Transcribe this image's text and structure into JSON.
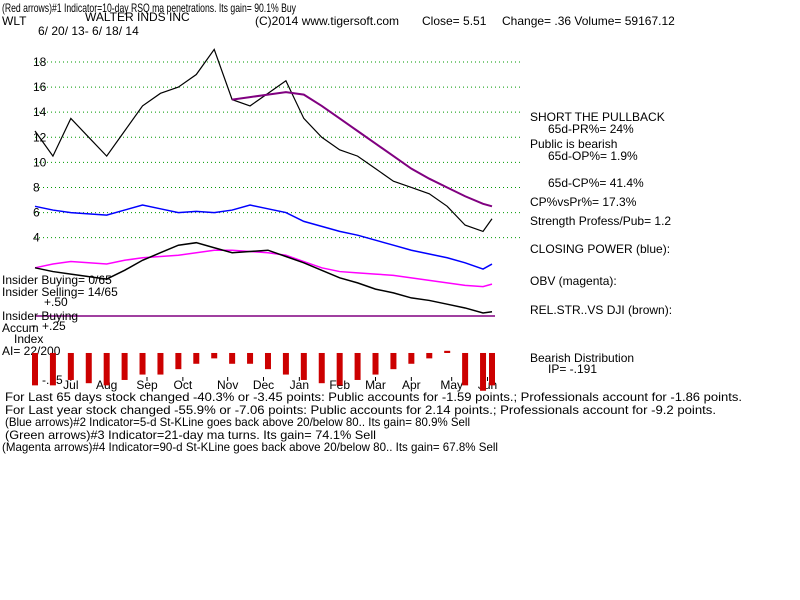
{
  "chart_data": [
    {
      "type": "line",
      "title": "WALTER INDS INC",
      "subtitle": "6/ 20/ 13- 6/ 18/ 14",
      "annotations": [
        "(Red arrows)#1 Indicator=10-day RSQ ma penetrations.  Its gain= 90.1% Buy",
        "WLT",
        "(C)2014 www.tigersoft.com",
        "Close=  5.51",
        "Change= .36 Volume= 59167.12",
        "SHORT THE PULLBACK",
        "65d-PR%= 24%",
        "Public is bearish",
        "65d-OP%= 1.9%",
        "65d-CP%= 41.4%",
        "CP%vsPr%=  17.3%",
        "Strength Profess/Pub= 1.2",
        "CLOSING POWER (blue):",
        "OBV (magenta):",
        "REL.STR..VS DJI (brown):",
        "Bearish Distribution",
        "IP= -.191",
        "Insider Buying= 0/65",
        "Insider Selling= 14/65",
        "+.50",
        "Insider Buying",
        "Accum",
        "Index",
        "AI= 22/200",
        "For Last 65 days stock changed -40.3% or -3.45 points:  Public accounts for -1.59 points.;  Professionals account for -1.86 points.",
        "For Last year stock changed -55.9% or -7.06 points:  Public accounts for  2.14 points.;  Professionals account for -9.2 points.",
        "(Blue arrows)#2 Indicator=5-d St-KLine goes back above 20/below 80.. Its gain= 80.9% Sell",
        "(Green arrows)#3 Indicator=21-day ma turns.  Its gain= 74.1% Sell",
        "(Magenta arrows)#4 Indicator=90-d St-KLine goes back above 20/below 80.. Its gain= 67.8% Sell"
      ],
      "x": [
        0,
        2,
        4,
        6,
        8,
        10,
        12,
        14,
        16,
        18,
        20,
        22,
        24,
        26,
        28,
        30,
        32,
        34,
        36,
        38,
        40,
        42,
        44,
        46,
        48,
        50,
        51
      ],
      "xlim": [
        0,
        51
      ],
      "xticks": [
        {
          "value": 4,
          "label": "Jul"
        },
        {
          "value": 8,
          "label": "Aug"
        },
        {
          "value": 12.5,
          "label": "Sep"
        },
        {
          "value": 16.5,
          "label": "Oct"
        },
        {
          "value": 21.5,
          "label": "Nov"
        },
        {
          "value": 25.5,
          "label": "Dec"
        },
        {
          "value": 29.5,
          "label": "Jan"
        },
        {
          "value": 34,
          "label": "Feb"
        },
        {
          "value": 38,
          "label": "Mar"
        },
        {
          "value": 42,
          "label": "Apr"
        },
        {
          "value": 46.5,
          "label": "May"
        },
        {
          "value": 50.5,
          "label": "Jun"
        }
      ],
      "ylim": [
        -2.4,
        20.5
      ],
      "yticks": [
        4,
        6,
        8,
        10,
        12,
        14,
        16,
        18
      ],
      "grid": true,
      "grid_color": "#009900",
      "series": [
        {
          "color": "#000000",
          "values": [
            12.5,
            10.5,
            13.5,
            12,
            10.5,
            12.5,
            14.5,
            15.5,
            16,
            17,
            19,
            15,
            14.5,
            15.5,
            16.5,
            13.5,
            12,
            11,
            10.5,
            9.5,
            8.5,
            8,
            7.5,
            6.5,
            5,
            4.5,
            5.51
          ]
        },
        {
          "color": "#800080",
          "values": [
            null,
            null,
            null,
            null,
            null,
            null,
            null,
            null,
            null,
            null,
            null,
            15,
            15.2,
            15.4,
            15.6,
            15.4,
            14.5,
            13.5,
            12.5,
            11.5,
            10.5,
            9.5,
            8.7,
            8,
            7.3,
            6.7,
            6.5
          ]
        },
        {
          "color": "#0000ff",
          "values": [
            6.5,
            6.2,
            6,
            5.9,
            5.8,
            6.2,
            6.6,
            6.3,
            6,
            6.1,
            6,
            6.2,
            6.6,
            6.3,
            6,
            5.3,
            4.9,
            4.5,
            4.2,
            3.8,
            3.4,
            3,
            2.7,
            2.4,
            2,
            1.5,
            1.9
          ]
        },
        {
          "color": "#ff00ff",
          "values": [
            1.6,
            1.9,
            2.1,
            2,
            1.9,
            2.2,
            2.4,
            2.5,
            2.6,
            2.8,
            3,
            3,
            2.9,
            2.8,
            2.6,
            2.1,
            1.6,
            1.3,
            1.2,
            1.1,
            1,
            0.8,
            0.6,
            0.4,
            0.2,
            0.1,
            0.3
          ]
        },
        {
          "color": "#000000",
          "values": [
            1.6,
            1.3,
            1.1,
            0.9,
            0.7,
            1.4,
            2.2,
            2.8,
            3.4,
            3.6,
            3.2,
            2.8,
            2.9,
            3,
            2.5,
            2,
            1.4,
            0.8,
            0.4,
            -0.1,
            -0.4,
            -0.8,
            -1,
            -1.3,
            -1.6,
            -2,
            -1.9
          ]
        }
      ]
    },
    {
      "type": "bar",
      "x": [
        0,
        2,
        4,
        6,
        8,
        10,
        12,
        14,
        16,
        18,
        20,
        22,
        24,
        26,
        28,
        30,
        32,
        34,
        36,
        38,
        40,
        42,
        44,
        46,
        48,
        50,
        51
      ],
      "xlim": [
        0,
        51
      ],
      "values": [
        -0.3,
        -0.3,
        -0.25,
        -0.28,
        -0.3,
        -0.25,
        -0.2,
        -0.2,
        -0.15,
        -0.1,
        -0.05,
        -0.1,
        -0.1,
        -0.15,
        -0.2,
        -0.25,
        -0.28,
        -0.3,
        -0.25,
        -0.2,
        -0.15,
        -0.1,
        -0.05,
        0.02,
        -0.3,
        -0.35,
        -0.3
      ],
      "color": "#cc0000",
      "ylim": [
        -0.343,
        0.3
      ],
      "yticks": [
        {
          "value": 0.25,
          "label": "+.25"
        },
        {
          "value": -0.25,
          "label": "-.25"
        }
      ]
    }
  ]
}
